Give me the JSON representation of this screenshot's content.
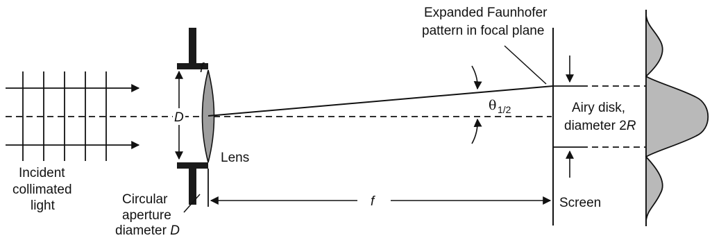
{
  "labels": {
    "pattern_line1": "Expanded Faunhofer",
    "pattern_line2": "pattern in focal plane",
    "theta": "θ",
    "theta_sub": "1/2",
    "aperture_top_f": "f",
    "D_symbol": "D",
    "lens": "Lens",
    "airy_line1": "Airy disk,",
    "airy_line2_prefix": "diameter 2",
    "airy_line2_var": "R",
    "incident_line1": "Incident",
    "incident_line2": "collimated",
    "incident_line3": "light",
    "aperture_line1": "Circular",
    "aperture_line2": "aperture",
    "aperture_line3_prefix": "diameter ",
    "aperture_line3_var": "D",
    "focal_length": "f",
    "screen": "Screen"
  },
  "colors": {
    "ink": "#111111",
    "lens_fill": "#9e9e9e",
    "aperture": "#1a1a1a",
    "intensity_fill": "#b9b9b9"
  },
  "icons": {
    "wavefront": "collimated-light-grid",
    "stop": "aperture-stop",
    "lens": "biconvex-lens",
    "profile": "airy-intensity-profile"
  }
}
